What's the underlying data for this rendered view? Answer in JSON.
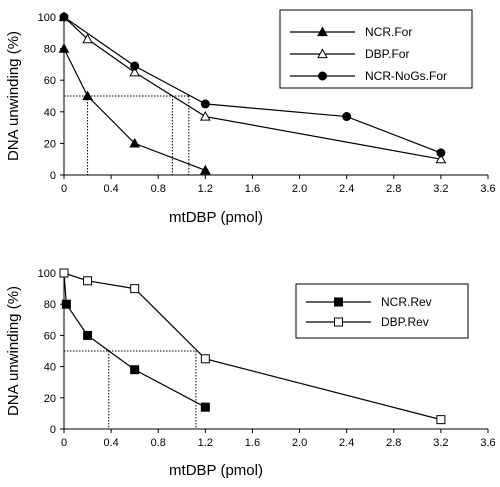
{
  "chart_data": [
    {
      "type": "line",
      "xlabel": "mtDBP (pmol)",
      "ylabel": "DNA unwinding (%)",
      "xlim": [
        0,
        3.6
      ],
      "ylim": [
        0,
        100
      ],
      "x_ticks": [
        "0",
        "0.4",
        "0.8",
        "1.2",
        "1.6",
        "2.0",
        "2.4",
        "2.8",
        "3.2",
        "3.6"
      ],
      "y_ticks": [
        "0",
        "20",
        "40",
        "60",
        "80",
        "100"
      ],
      "legend_position": "top-right",
      "series": [
        {
          "name": "NCR.For",
          "marker": "filled-triangle",
          "points": [
            [
              0,
              80
            ],
            [
              0.2,
              50
            ],
            [
              0.6,
              20
            ],
            [
              1.2,
              3
            ]
          ]
        },
        {
          "name": "DBP.For",
          "marker": "open-triangle",
          "points": [
            [
              0,
              100
            ],
            [
              0.2,
              86
            ],
            [
              0.6,
              65
            ],
            [
              1.2,
              37
            ],
            [
              3.2,
              10
            ]
          ]
        },
        {
          "name": "NCR-NoGs.For",
          "marker": "filled-circle",
          "points": [
            [
              0,
              100
            ],
            [
              0.6,
              69
            ],
            [
              1.2,
              45
            ],
            [
              2.4,
              37
            ],
            [
              3.2,
              14
            ]
          ]
        }
      ],
      "reference_lines": {
        "y": 50,
        "x": [
          0.2,
          0.92,
          1.06
        ]
      }
    },
    {
      "type": "line",
      "xlabel": "mtDBP (pmol)",
      "ylabel": "DNA unwinding (%)",
      "xlim": [
        0,
        3.6
      ],
      "ylim": [
        0,
        100
      ],
      "x_ticks": [
        "0",
        "0.4",
        "0.8",
        "1.2",
        "1.6",
        "2.0",
        "2.4",
        "2.8",
        "3.2",
        "3.6"
      ],
      "y_ticks": [
        "0",
        "20",
        "40",
        "60",
        "80",
        "100"
      ],
      "legend_position": "top-right",
      "series": [
        {
          "name": "NCR.Rev",
          "marker": "filled-square",
          "points": [
            [
              0,
              100
            ],
            [
              0.02,
              80
            ],
            [
              0.2,
              60
            ],
            [
              0.6,
              38
            ],
            [
              1.2,
              14
            ]
          ]
        },
        {
          "name": "DBP.Rev",
          "marker": "open-square",
          "points": [
            [
              0,
              100
            ],
            [
              0.2,
              95
            ],
            [
              0.6,
              90
            ],
            [
              1.2,
              45
            ],
            [
              3.2,
              6
            ]
          ]
        }
      ],
      "reference_lines": {
        "y": 50,
        "x": [
          0.38,
          1.12
        ]
      }
    }
  ]
}
